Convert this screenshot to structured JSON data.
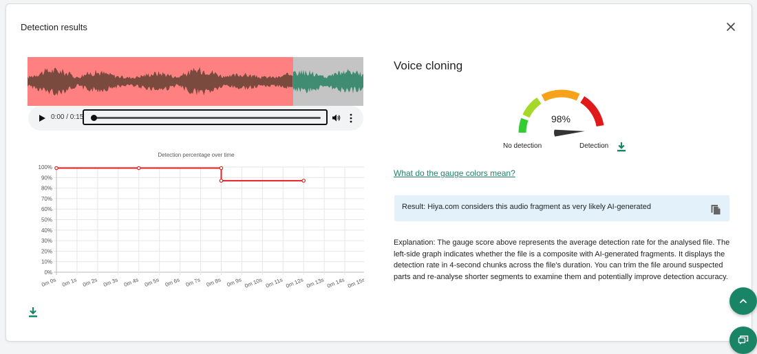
{
  "dialog": {
    "title": "Detection results"
  },
  "player": {
    "time": "0:00 / 0:15"
  },
  "chart_data": {
    "type": "line",
    "title": "Detection percentage over time",
    "x_tick_labels": [
      "0m 0s",
      "0m 1s",
      "0m 2s",
      "0m 3s",
      "0m 4s",
      "0m 5s",
      "0m 6s",
      "0m 7s",
      "0m 8s",
      "0m 9s",
      "0m 10s",
      "0m 11s",
      "0m 12s",
      "0m 13s",
      "0m 14s",
      "0m 15s"
    ],
    "y_tick_labels": [
      "0%",
      "10%",
      "20%",
      "30%",
      "40%",
      "50%",
      "60%",
      "70%",
      "80%",
      "90%",
      "100%"
    ],
    "xlim": [
      0,
      15
    ],
    "ylim": [
      0,
      100
    ],
    "grid": true,
    "series": [
      {
        "color": "#e02020",
        "points": [
          [
            0,
            99
          ],
          [
            4,
            99
          ],
          [
            8,
            99
          ],
          [
            8,
            87
          ],
          [
            12,
            87
          ]
        ]
      }
    ]
  },
  "result": {
    "heading": "Voice cloning",
    "score_label": "98%",
    "score": 98,
    "gauge_low_label": "No detection",
    "gauge_high_label": "Detection",
    "gauge_colors": [
      "#33cc33",
      "#a6d82a",
      "#f7a21b",
      "#e01919"
    ],
    "gauge_link": "What do the gauge colors mean?",
    "message": "Result: Hiya.com considers this audio fragment as very likely AI-generated",
    "explanation": "Explanation: The gauge score above represents the average detection rate for the analysed file. The left-side graph indicates whether the file is a composite with AI-generated fragments. It displays the detection rate in 4-second chunks across the file's duration. You can trim the file around suspected parts and re-analyse shorter segments to examine them and potentially improve detection accuracy."
  },
  "colors": {
    "accent": "#1a8466",
    "detected_region": "#ff8080",
    "detected_wave": "#7a4a3e",
    "clean_region": "#c4c4c4",
    "clean_wave": "#3f8c73",
    "info_box": "#e3f2fa"
  },
  "icons": {
    "close": "close-icon",
    "play": "play-icon",
    "volume": "volume-icon",
    "more": "more-vertical-icon",
    "download": "download-icon",
    "copy": "copy-icon",
    "scroll_top": "chevron-up-icon",
    "chat": "chat-icon"
  }
}
